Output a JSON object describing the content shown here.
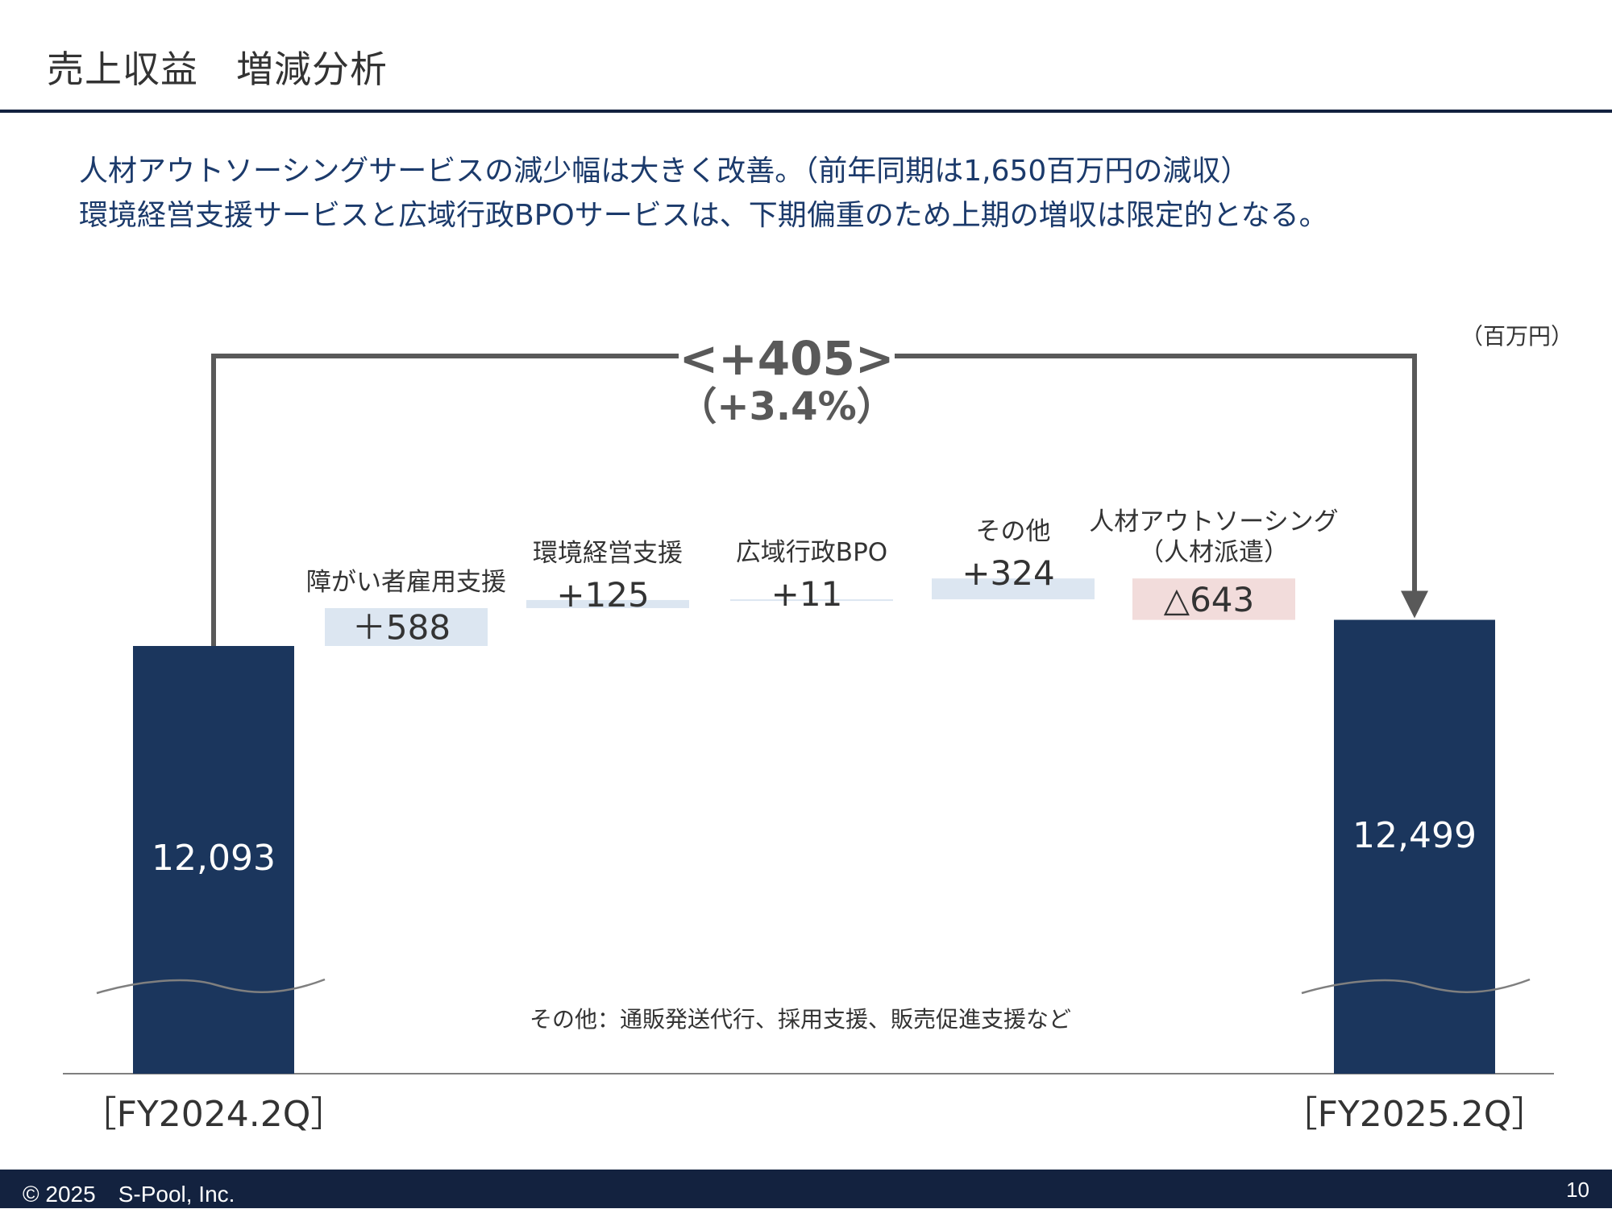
{
  "slide": {
    "title": "売上収益　増減分析",
    "headline_lines": [
      "人材アウトソーシングサービスの減少幅は大きく改善。（前年同期は1,650百万円の減収）",
      "環境経営支援サービスと広域行政BPOサービスは、下期偏重のため上期の増収は限定的となる。"
    ],
    "unit": "（百万円）"
  },
  "chart_data": {
    "type": "bar",
    "subtype": "waterfall",
    "start": {
      "label": "［FY2024.2Q］",
      "value": 12093,
      "value_label": "12,093"
    },
    "end": {
      "label": "［FY2025.2Q］",
      "value": 12499,
      "value_label": "12,499"
    },
    "steps": [
      {
        "name_lines": [
          "障がい者雇用支援"
        ],
        "value": 588,
        "value_label": "＋588",
        "kind": "increase"
      },
      {
        "name_lines": [
          "環境経営支援"
        ],
        "value": 125,
        "value_label": "+125",
        "kind": "increase"
      },
      {
        "name_lines": [
          "広域行政BPO"
        ],
        "value": 11,
        "value_label": "+11",
        "kind": "increase"
      },
      {
        "name_lines": [
          "その他"
        ],
        "value": 324,
        "value_label": "+324",
        "kind": "increase"
      },
      {
        "name_lines": [
          "人材アウトソーシング",
          "（人材派遣）"
        ],
        "value": -643,
        "value_label": "△643",
        "kind": "decrease"
      }
    ],
    "change": {
      "value": 405,
      "label": "<+405>",
      "percent_label": "（+3.4%）"
    },
    "note": "その他：通販発送代行、採用支援、販売促進支援など",
    "axis_break": true,
    "colors": {
      "total_bar": "#1b365d",
      "increase": "#dce6f1",
      "decrease": "#f2dcdb",
      "connector": "#595959",
      "text": "#333333"
    }
  },
  "footer": {
    "copyright": "© 2025　S-Pool, Inc.",
    "page_number": "10"
  }
}
